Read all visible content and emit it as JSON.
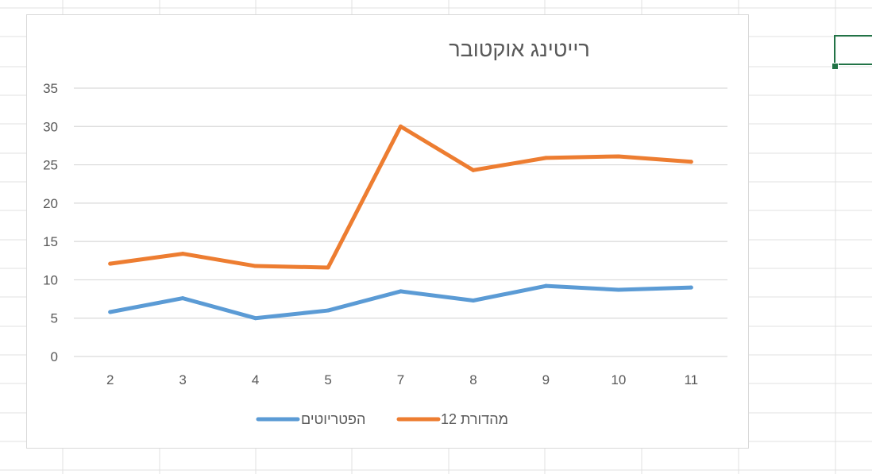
{
  "chart_data": {
    "type": "line",
    "title": "רייטינג אוקטובר",
    "categories": [
      "2",
      "3",
      "4",
      "5",
      "7",
      "8",
      "9",
      "10",
      "11"
    ],
    "series": [
      {
        "name": "הפטריוטים",
        "color": "#5b9bd5",
        "values": [
          5.8,
          7.6,
          5.0,
          6.0,
          8.5,
          7.3,
          9.2,
          8.7,
          9.0
        ]
      },
      {
        "name": "מהדורת 12",
        "color": "#ed7d31",
        "values": [
          12.1,
          13.4,
          11.8,
          11.6,
          30.0,
          24.3,
          25.9,
          26.1,
          25.4
        ]
      }
    ],
    "ylim": [
      0,
      35
    ],
    "yticks": [
      0,
      5,
      10,
      15,
      20,
      25,
      30,
      35
    ],
    "xlabel": "",
    "ylabel": "",
    "grid": true,
    "legend": "bottom",
    "gridline_color": "#d9d9d9"
  }
}
